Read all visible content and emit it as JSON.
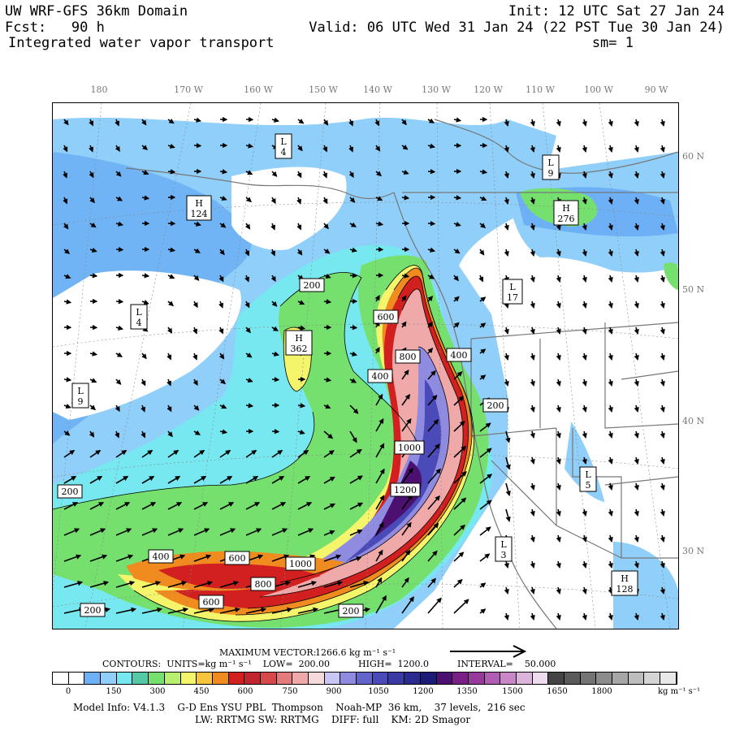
{
  "header": {
    "title_left": "UW WRF-GFS 36km Domain",
    "fcst": "Fcst:   90 h",
    "field": "Integrated water vapor transport",
    "init": "Init: 12 UTC Sat 27 Jan 24",
    "valid": "Valid: 06 UTC Wed 31 Jan 24 (22 PST Tue 30 Jan 24)",
    "sm": "sm= 1"
  },
  "axes": {
    "lon_labels": [
      "180",
      "170 W",
      "160 W",
      "150 W",
      "140 W",
      "130 W",
      "120 W",
      "110 W",
      "100 W",
      "90 W"
    ],
    "lat_labels": [
      "60 N",
      "50 N",
      "40 N",
      "30 N"
    ]
  },
  "map_labels": {
    "pressure_centers": [
      {
        "type": "L",
        "value": "4"
      },
      {
        "type": "H",
        "value": "124"
      },
      {
        "type": "L",
        "value": "4"
      },
      {
        "type": "L",
        "value": "9"
      },
      {
        "type": "H",
        "value": "362"
      },
      {
        "type": "L",
        "value": "9"
      },
      {
        "type": "H",
        "value": "276"
      },
      {
        "type": "L",
        "value": "17"
      },
      {
        "type": "L",
        "value": "5"
      },
      {
        "type": "L",
        "value": "3"
      },
      {
        "type": "H",
        "value": "128"
      }
    ],
    "contour_labels": [
      "200",
      "400",
      "600",
      "800",
      "1000",
      "1200",
      "200",
      "400",
      "600",
      "800",
      "1000",
      "200",
      "600",
      "400",
      "200",
      "200"
    ]
  },
  "vector_info": {
    "max_vector_label": "MAXIMUM VECTOR:",
    "max_vector_value": "1266.6 kg m⁻¹ s⁻¹"
  },
  "contours": {
    "text": "CONTOURS:  UNITS=kg m⁻¹ s⁻¹    LOW=  200.00          HIGH=  1200.0          INTERVAL=    50.000"
  },
  "colorbar": {
    "colors": [
      "#ffffff",
      "#ffffff",
      "#6db0f5",
      "#8fcff9",
      "#77e8f0",
      "#55c9a5",
      "#75e06e",
      "#b9ef6f",
      "#f5f56c",
      "#f7c43b",
      "#f08c1f",
      "#d21f1f",
      "#c1252e",
      "#d7484b",
      "#e47a7b",
      "#f0a9a9",
      "#f6d9d9",
      "#c9c6f5",
      "#8f8be0",
      "#6363cc",
      "#4a4ab8",
      "#3a3aa4",
      "#2b2b8f",
      "#1c1c78",
      "#4b1070",
      "#7a1f85",
      "#973a9c",
      "#b15db3",
      "#c987c8",
      "#dcb3db",
      "#eedcee",
      "#444444",
      "#5a5a5a",
      "#747474",
      "#8c8c8c",
      "#a6a6a6",
      "#bdbdbd",
      "#d4d4d4",
      "#e8e8e8"
    ],
    "tick_labels": [
      "0",
      "150",
      "300",
      "450",
      "600",
      "750",
      "900",
      "1050",
      "1200",
      "1350",
      "1500",
      "1650",
      "1800"
    ],
    "units": "kg m⁻¹ s⁻¹"
  },
  "footer": {
    "line1": "Model Info: V4.1.3    G-D Ens YSU PBL  Thompson    Noah-MP  36 km,    37 levels,  216 sec",
    "line2": "LW: RRTMG SW: RRTMG    DIFF: full    KM: 2D Smagor"
  }
}
